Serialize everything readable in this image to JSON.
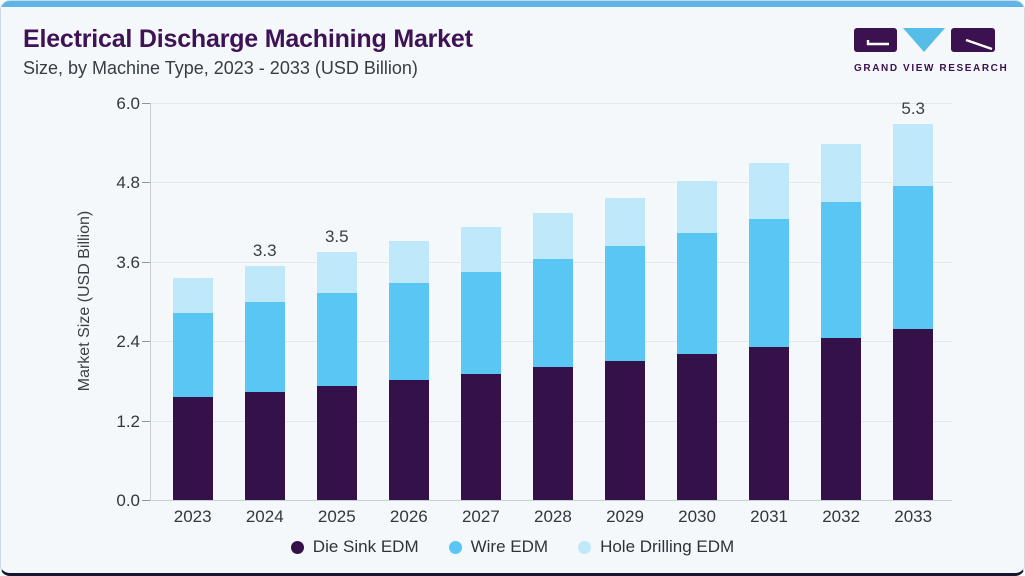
{
  "header": {
    "title": "Electrical Discharge Machining Market",
    "subtitle": "Size, by Machine Type, 2023 - 2033 (USD Billion)"
  },
  "logo": {
    "text": "GRAND VIEW RESEARCH",
    "mark_icons": [
      "g-block-icon",
      "triangle-down-icon",
      "r-block-icon"
    ],
    "purple": "#3b1150",
    "blue": "#56bce8"
  },
  "colors": {
    "top_accent_bar": "#5cb5e6",
    "card_background": "#f4f8fb",
    "title_purple": "#3e1254",
    "axis_gray": "#c6cfd6",
    "bottom_edge": "#16162e"
  },
  "chart_data": {
    "type": "bar",
    "stacked": true,
    "title": "Electrical Discharge Machining Market",
    "subtitle": "Size, by Machine Type, 2023 - 2033 (USD Billion)",
    "xlabel": "",
    "ylabel": "Market Size (USD Billion)",
    "ylim": [
      0,
      6
    ],
    "yticks": [
      6.0,
      4.8,
      3.6,
      2.4,
      1.2,
      0.0
    ],
    "grid": true,
    "legend_position": "bottom",
    "categories": [
      "2023",
      "2024",
      "2025",
      "2026",
      "2027",
      "2028",
      "2029",
      "2030",
      "2031",
      "2032",
      "2033"
    ],
    "series": [
      {
        "name": "Die Sink EDM",
        "color": "#341249",
        "values": [
          1.45,
          1.52,
          1.6,
          1.69,
          1.77,
          1.87,
          1.96,
          2.06,
          2.16,
          2.28,
          2.41
        ]
      },
      {
        "name": "Wire EDM",
        "color": "#5ac6f3",
        "values": [
          1.18,
          1.27,
          1.32,
          1.36,
          1.44,
          1.53,
          1.62,
          1.7,
          1.8,
          1.92,
          2.01
        ]
      },
      {
        "name": "Hole Drilling EDM",
        "color": "#bfe8fa",
        "values": [
          0.5,
          0.51,
          0.58,
          0.6,
          0.63,
          0.64,
          0.68,
          0.73,
          0.78,
          0.82,
          0.88
        ]
      }
    ],
    "totals": [
      3.1,
      3.3,
      3.5,
      3.65,
      3.84,
      4.04,
      4.26,
      4.49,
      4.74,
      5.02,
      5.3
    ],
    "bar_labels": {
      "2024": "3.3",
      "2025": "3.5",
      "2033": "5.3"
    }
  }
}
